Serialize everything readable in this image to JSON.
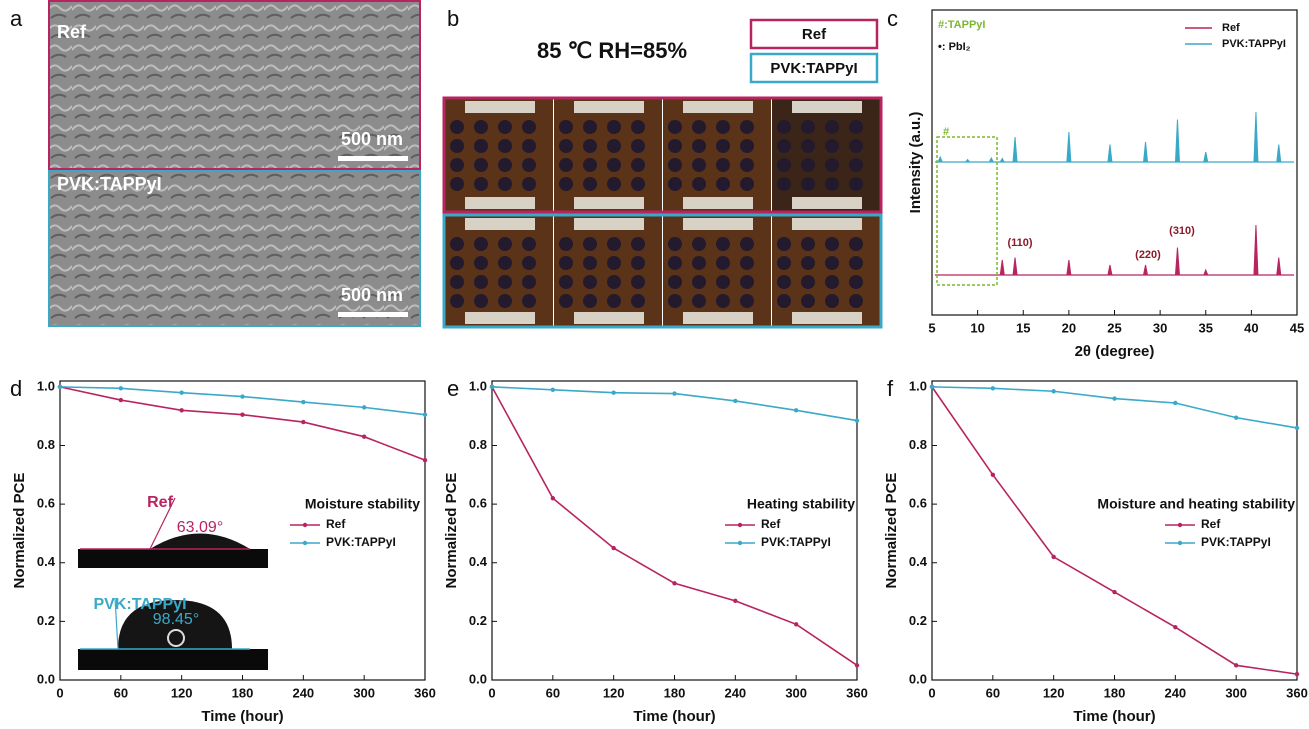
{
  "panel_labels": [
    "a",
    "b",
    "c",
    "d",
    "e",
    "f"
  ],
  "panel_a": {
    "images": [
      {
        "label": "Ref",
        "scale_bar": "500 nm"
      },
      {
        "label": "PVK:TAPPyI",
        "scale_bar": "500 nm"
      }
    ]
  },
  "panel_b": {
    "condition": "85 ℃ RH=85%",
    "legend": [
      "Ref",
      "PVK:TAPPyI"
    ]
  },
  "panel_d_inset": {
    "images": [
      {
        "label": "Ref",
        "angle": "63.09°"
      },
      {
        "label": "PVK:TAPPyI",
        "angle": "98.45°"
      }
    ]
  },
  "chart_data": [
    {
      "type": "spectrum",
      "xlabel": "2θ (degree)",
      "ylabel": "Intensity (a.u.)",
      "x": [
        5.9,
        8.9,
        11.5,
        12.7,
        14.1,
        20.0,
        24.5,
        28.4,
        31.9,
        35.0,
        40.5,
        43.0
      ],
      "series": [
        {
          "name": "Ref",
          "color": "#b8245f",
          "values": [
            0,
            0,
            0,
            0.3,
            0.35,
            0.3,
            0.2,
            0.2,
            0.55,
            0.1,
            1.0,
            0.35
          ]
        },
        {
          "name": "PVK:TAPPyI",
          "color": "#3aa9c8",
          "values": [
            0.1,
            0.05,
            0.08,
            0.07,
            0.5,
            0.6,
            0.35,
            0.4,
            0.85,
            0.2,
            1.0,
            0.35
          ]
        }
      ],
      "xlim": [
        5,
        45
      ],
      "xticks": [
        5,
        10,
        15,
        20,
        25,
        30,
        35,
        40,
        45
      ],
      "ylim": [
        0,
        1
      ],
      "annotations": [
        "#:TAPPyI",
        "•: PbI₂",
        "#",
        "(110)",
        "(220)",
        "(310)"
      ]
    },
    {
      "type": "line",
      "title": "Moisture stability",
      "xlabel": "Time (hour)",
      "ylabel": "Normalized PCE",
      "x": [
        0,
        60,
        120,
        180,
        240,
        300,
        360
      ],
      "series": [
        {
          "name": "Ref",
          "color": "#b8245f",
          "values": [
            1.0,
            0.955,
            0.92,
            0.905,
            0.88,
            0.83,
            0.75
          ]
        },
        {
          "name": "PVK:TAPPyI",
          "color": "#3aa9c8",
          "values": [
            1.0,
            0.995,
            0.98,
            0.967,
            0.948,
            0.93,
            0.905
          ]
        }
      ],
      "xlim": [
        0,
        360
      ],
      "xticks": [
        0,
        60,
        120,
        180,
        240,
        300,
        360
      ],
      "ylim": [
        0,
        1.02
      ],
      "yticks": [
        {
          "value": 0,
          "label": "0.0"
        },
        0.2,
        0.4,
        0.6,
        0.8,
        {
          "value": 1,
          "label": "1.0"
        }
      ]
    },
    {
      "type": "line",
      "title": "Heating stability",
      "xlabel": "Time (hour)",
      "ylabel": "Normalized PCE",
      "x": [
        0,
        60,
        120,
        180,
        240,
        300,
        360
      ],
      "series": [
        {
          "name": "Ref",
          "color": "#b8245f",
          "values": [
            1.0,
            0.62,
            0.45,
            0.33,
            0.27,
            0.19,
            0.05
          ]
        },
        {
          "name": "PVK:TAPPyI",
          "color": "#3aa9c8",
          "values": [
            1.0,
            0.99,
            0.98,
            0.977,
            0.952,
            0.92,
            0.885
          ]
        }
      ],
      "xlim": [
        0,
        360
      ],
      "xticks": [
        0,
        60,
        120,
        180,
        240,
        300,
        360
      ],
      "ylim": [
        0,
        1.02
      ],
      "yticks": [
        {
          "value": 0,
          "label": "0.0"
        },
        0.2,
        0.4,
        0.6,
        0.8,
        {
          "value": 1,
          "label": "1.0"
        }
      ]
    },
    {
      "type": "line",
      "title": "Moisture and heating stability",
      "xlabel": "Time (hour)",
      "ylabel": "Normalized PCE",
      "x": [
        0,
        60,
        120,
        180,
        240,
        300,
        360
      ],
      "series": [
        {
          "name": "Ref",
          "color": "#b8245f",
          "values": [
            1.0,
            0.7,
            0.42,
            0.3,
            0.18,
            0.05,
            0.02
          ]
        },
        {
          "name": "PVK:TAPPyI",
          "color": "#3aa9c8",
          "values": [
            1.0,
            0.995,
            0.985,
            0.96,
            0.945,
            0.895,
            0.86
          ]
        }
      ],
      "xlim": [
        0,
        360
      ],
      "xticks": [
        0,
        60,
        120,
        180,
        240,
        300,
        360
      ],
      "ylim": [
        0,
        1.02
      ],
      "yticks": [
        {
          "value": 0,
          "label": "0.0"
        },
        0.2,
        0.4,
        0.6,
        0.8,
        {
          "value": 1,
          "label": "1.0"
        }
      ]
    }
  ]
}
